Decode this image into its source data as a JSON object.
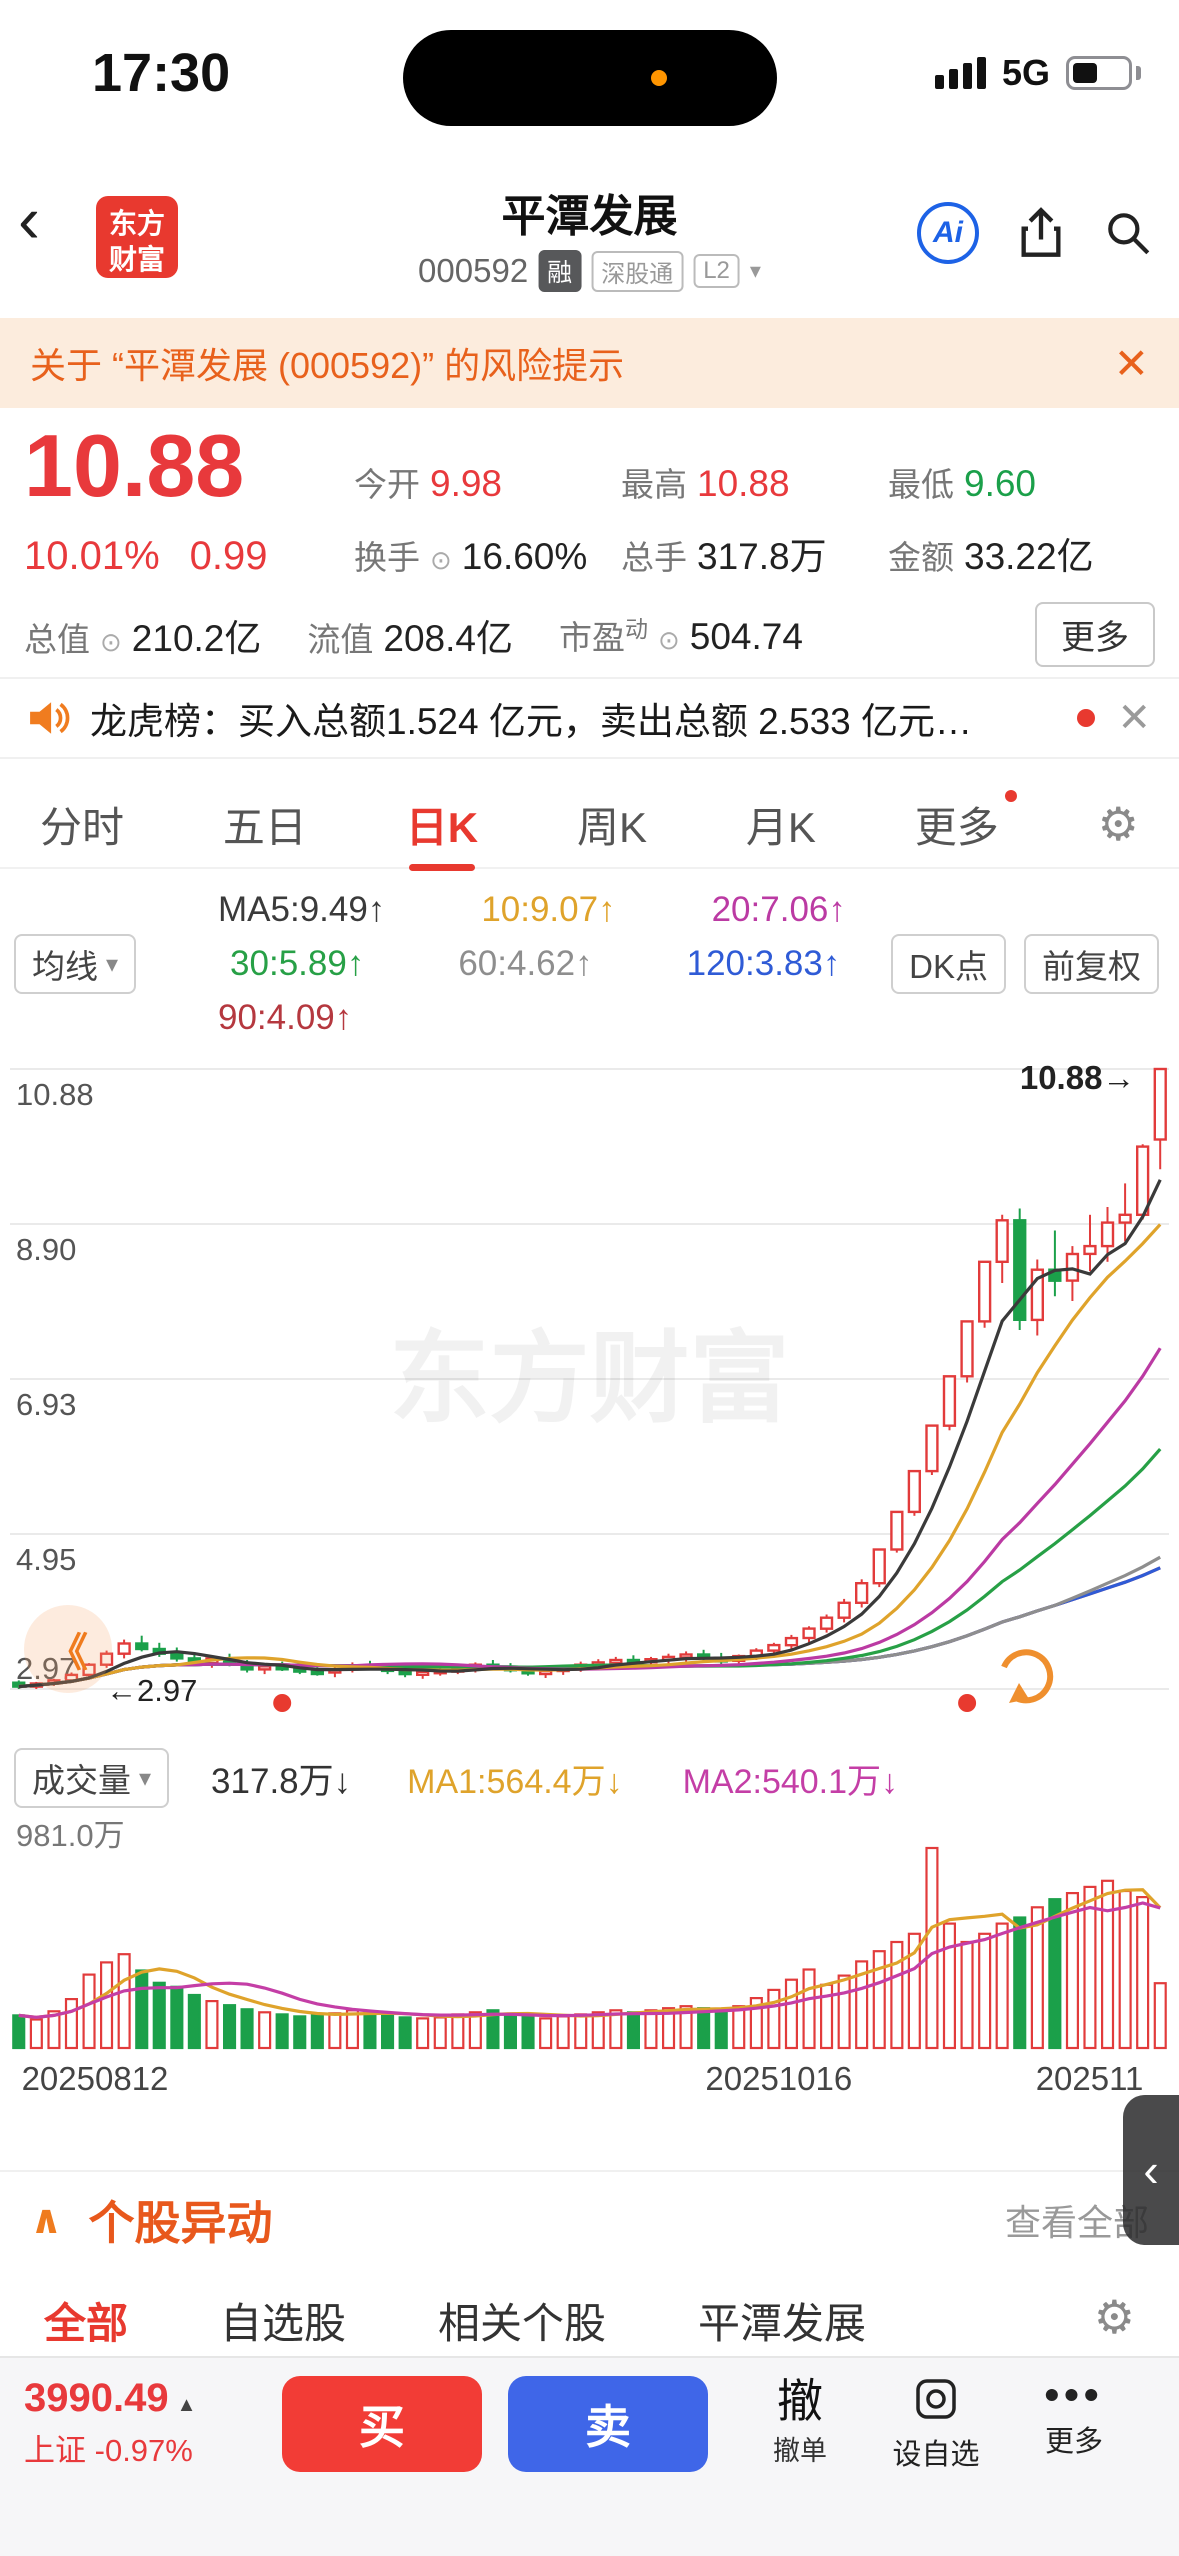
{
  "status_bar": {
    "time": "17:30",
    "network": "5G"
  },
  "icons": {
    "back": "‹",
    "collapse_left": "《",
    "caret_down": "▾",
    "gear": "⚙",
    "close": "✕",
    "handle_chevron": "‹",
    "yidong_caret": "∧",
    "more_dots": "•••",
    "index_caret": "▲",
    "info": "⊙"
  },
  "header": {
    "logo_line1": "东方",
    "logo_line2": "财富",
    "title": "平潭发展",
    "code": "000592",
    "badge_margin": "融",
    "badge_connect": "深股通",
    "badge_level": "L2",
    "ai_label": "Ai"
  },
  "risk_banner": {
    "text": "关于 “平潭发展 (000592)” 的风险提示"
  },
  "quote": {
    "price": "10.88",
    "change_pct": "10.01%",
    "change_val": "0.99",
    "open_label": "今开",
    "open": "9.98",
    "high_label": "最高",
    "high": "10.88",
    "low_label": "最低",
    "low": "9.60",
    "turnover_label": "换手",
    "turnover": "16.60%",
    "volume_label": "总手",
    "volume": "317.8万",
    "amount_label": "金额",
    "amount": "33.22亿",
    "mktcap_label": "总值",
    "mktcap": "210.2亿",
    "floatcap_label": "流值",
    "floatcap": "208.4亿",
    "pe_label": "市盈",
    "pe_sup": "动",
    "pe": "504.74",
    "more_label": "更多"
  },
  "lhb": {
    "text": "龙虎榜：买入总额1.524 亿元，卖出总额 2.533 亿元…"
  },
  "chart_tabs": {
    "items": [
      "分时",
      "五日",
      "日K",
      "周K",
      "月K",
      "更多"
    ],
    "active": "日K"
  },
  "ma_panel": {
    "avg_button": "均线",
    "dk_button": "DK点",
    "adjust_button": "前复权"
  },
  "chart_data": {
    "type": "candlestick",
    "title": "平潭发展 日K",
    "y_ticks": [
      "10.88",
      "8.90",
      "6.93",
      "4.95",
      "2.97"
    ],
    "y_range": [
      2.97,
      10.88
    ],
    "up_color": "#e23b3b",
    "down_color": "#1ba04a",
    "watermark": "东方财富",
    "annotations": {
      "high": "10.88→",
      "low": "←2.97"
    },
    "event_dot_indices": [
      15,
      54
    ],
    "ma_lines": [
      {
        "label": "MA5:9.49↑",
        "n": 5,
        "color": "#3a3a3a"
      },
      {
        "label": "10:9.07↑",
        "n": 10,
        "color": "#dfa32b"
      },
      {
        "label": "20:7.06↑",
        "n": 20,
        "color": "#bb3aa3"
      },
      {
        "label": "30:5.89↑",
        "n": 30,
        "color": "#27a046"
      },
      {
        "label": "60:4.62↑",
        "n": 60,
        "color": "#8e8e8e"
      },
      {
        "label": "120:3.83↑",
        "n": 120,
        "color": "#2f5bd6"
      },
      {
        "label": "90:4.09↑",
        "n": 90,
        "color": "#b5383f"
      }
    ],
    "vol_ma": [
      {
        "label": "MA1:564.4万↓",
        "n": 5,
        "color": "#dfa32b"
      },
      {
        "label": "MA2:540.1万↓",
        "n": 10,
        "color": "#c43ea6"
      }
    ],
    "volume_max": 981,
    "volume_max_label": "981.0万",
    "x_axis_labels": [
      {
        "text": "20250812",
        "pos": 0.01
      },
      {
        "text": "20251016",
        "pos": 0.6
      },
      {
        "text": "202511",
        "pos": 0.885
      }
    ],
    "candles": [
      [
        3.05,
        3.08,
        2.97,
        3.0
      ],
      [
        3.0,
        3.06,
        2.97,
        3.04
      ],
      [
        3.04,
        3.1,
        3.01,
        3.08
      ],
      [
        3.08,
        3.18,
        3.05,
        3.15
      ],
      [
        3.15,
        3.3,
        3.12,
        3.28
      ],
      [
        3.28,
        3.46,
        3.24,
        3.42
      ],
      [
        3.42,
        3.6,
        3.36,
        3.55
      ],
      [
        3.55,
        3.65,
        3.45,
        3.48
      ],
      [
        3.48,
        3.56,
        3.38,
        3.42
      ],
      [
        3.42,
        3.5,
        3.32,
        3.36
      ],
      [
        3.36,
        3.44,
        3.26,
        3.3
      ],
      [
        3.3,
        3.4,
        3.24,
        3.36
      ],
      [
        3.36,
        3.42,
        3.26,
        3.29
      ],
      [
        3.29,
        3.34,
        3.18,
        3.22
      ],
      [
        3.22,
        3.3,
        3.16,
        3.26
      ],
      [
        3.26,
        3.32,
        3.2,
        3.23
      ],
      [
        3.23,
        3.29,
        3.16,
        3.2
      ],
      [
        3.2,
        3.27,
        3.14,
        3.18
      ],
      [
        3.18,
        3.25,
        3.12,
        3.22
      ],
      [
        3.22,
        3.31,
        3.18,
        3.27
      ],
      [
        3.27,
        3.33,
        3.21,
        3.24
      ],
      [
        3.24,
        3.29,
        3.16,
        3.2
      ],
      [
        3.2,
        3.26,
        3.12,
        3.16
      ],
      [
        3.16,
        3.23,
        3.1,
        3.19
      ],
      [
        3.19,
        3.25,
        3.14,
        3.21
      ],
      [
        3.21,
        3.27,
        3.16,
        3.23
      ],
      [
        3.23,
        3.31,
        3.18,
        3.28
      ],
      [
        3.28,
        3.34,
        3.22,
        3.25
      ],
      [
        3.25,
        3.3,
        3.18,
        3.21
      ],
      [
        3.21,
        3.27,
        3.14,
        3.17
      ],
      [
        3.17,
        3.24,
        3.11,
        3.2
      ],
      [
        3.2,
        3.28,
        3.15,
        3.25
      ],
      [
        3.25,
        3.32,
        3.19,
        3.28
      ],
      [
        3.28,
        3.35,
        3.22,
        3.31
      ],
      [
        3.31,
        3.38,
        3.25,
        3.34
      ],
      [
        3.34,
        3.4,
        3.27,
        3.31
      ],
      [
        3.31,
        3.38,
        3.25,
        3.35
      ],
      [
        3.35,
        3.42,
        3.29,
        3.38
      ],
      [
        3.38,
        3.45,
        3.32,
        3.41
      ],
      [
        3.41,
        3.47,
        3.33,
        3.36
      ],
      [
        3.36,
        3.43,
        3.28,
        3.33
      ],
      [
        3.33,
        3.41,
        3.27,
        3.39
      ],
      [
        3.39,
        3.49,
        3.34,
        3.46
      ],
      [
        3.46,
        3.56,
        3.41,
        3.53
      ],
      [
        3.53,
        3.66,
        3.48,
        3.62
      ],
      [
        3.62,
        3.77,
        3.56,
        3.74
      ],
      [
        3.74,
        3.92,
        3.69,
        3.88
      ],
      [
        3.88,
        4.12,
        3.82,
        4.07
      ],
      [
        4.07,
        4.37,
        4.01,
        4.32
      ],
      [
        4.32,
        4.75,
        4.27,
        4.75
      ],
      [
        4.75,
        5.23,
        4.71,
        5.23
      ],
      [
        5.23,
        5.75,
        5.18,
        5.75
      ],
      [
        5.75,
        6.33,
        5.7,
        6.33
      ],
      [
        6.33,
        6.96,
        6.27,
        6.96
      ],
      [
        6.96,
        7.66,
        6.88,
        7.66
      ],
      [
        7.66,
        8.42,
        7.58,
        8.42
      ],
      [
        8.42,
        9.02,
        8.15,
        8.95
      ],
      [
        8.95,
        9.1,
        7.55,
        7.68
      ],
      [
        7.68,
        8.45,
        7.48,
        8.32
      ],
      [
        8.32,
        8.82,
        7.98,
        8.18
      ],
      [
        8.18,
        8.62,
        7.92,
        8.52
      ],
      [
        8.52,
        9.02,
        8.3,
        8.62
      ],
      [
        8.62,
        9.12,
        8.42,
        8.92
      ],
      [
        8.92,
        9.42,
        8.68,
        9.02
      ],
      [
        9.02,
        9.92,
        8.96,
        9.89
      ],
      [
        9.98,
        10.88,
        9.6,
        10.88
      ]
    ],
    "volumes": [
      160,
      140,
      180,
      240,
      360,
      420,
      460,
      380,
      320,
      300,
      260,
      230,
      210,
      190,
      175,
      165,
      155,
      160,
      170,
      185,
      175,
      160,
      150,
      145,
      150,
      165,
      175,
      185,
      165,
      155,
      145,
      155,
      165,
      175,
      185,
      175,
      185,
      195,
      205,
      195,
      185,
      205,
      245,
      285,
      335,
      385,
      310,
      355,
      425,
      475,
      520,
      560,
      981,
      610,
      520,
      560,
      610,
      640,
      690,
      730,
      760,
      790,
      820,
      770,
      740,
      317.8
    ]
  },
  "volume_panel": {
    "selector": "成交量",
    "current": "317.8万↓"
  },
  "sections": {
    "yidong_title": "个股异动",
    "view_all": "查看全部",
    "subtabs": [
      "全部",
      "自选股",
      "相关个股",
      "平潭发展"
    ]
  },
  "trade_bar": {
    "index_value": "3990.49",
    "index_name": "上证",
    "index_change": "-0.97%",
    "buy": "买",
    "sell": "卖",
    "cancel_big": "撤",
    "cancel_small": "撤单",
    "watchlist": "设自选",
    "more": "更多"
  },
  "colors": {
    "up_red": "#e8393c",
    "down_green": "#1ba04a",
    "accent_orange": "#e8611c",
    "brand_blue": "#2f66e0"
  }
}
